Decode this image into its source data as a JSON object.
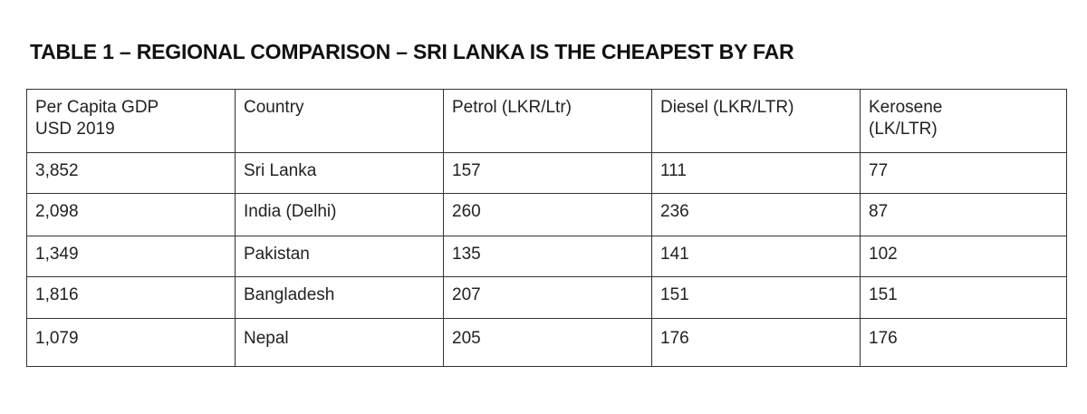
{
  "title": "TABLE 1 – REGIONAL COMPARISON – SRI LANKA IS THE CHEAPEST BY FAR",
  "table": {
    "headers": [
      "Per Capita GDP\nUSD 2019",
      "Country",
      "Petrol (LKR/Ltr)",
      "Diesel (LKR/LTR)",
      "Kerosene\n(LK/LTR)"
    ],
    "rows": [
      [
        "3,852",
        "Sri Lanka",
        "157",
        "111",
        "77"
      ],
      [
        "2,098",
        "India (Delhi)",
        "260",
        "236",
        "87"
      ],
      [
        "1,349",
        "Pakistan",
        "135",
        "141",
        "102"
      ],
      [
        "1,816",
        "Bangladesh",
        "207",
        "151",
        "151"
      ],
      [
        "1,079",
        "Nepal",
        "205",
        "176",
        "176"
      ]
    ]
  }
}
